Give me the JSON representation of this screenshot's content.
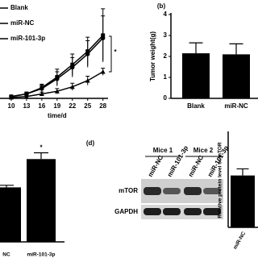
{
  "chart_data": [
    {
      "type": "line",
      "x": [
        10,
        13,
        16,
        19,
        22,
        25,
        28
      ],
      "xlim": [
        7,
        29
      ],
      "xticks": [
        10,
        13,
        16,
        19,
        22,
        25,
        28
      ],
      "xlabel": "time/d",
      "ylim": [
        0,
        1
      ],
      "annotation": "*",
      "series": [
        {
          "name": "Blank",
          "color": "#000000",
          "marker": "square",
          "values": [
            0.02,
            0.05,
            0.12,
            0.24,
            0.38,
            0.53,
            0.71
          ],
          "errors": [
            0.01,
            0.02,
            0.04,
            0.09,
            0.12,
            0.16,
            0.3
          ]
        },
        {
          "name": "miR-NC",
          "color": "#000000",
          "marker": "circle",
          "values": [
            0.02,
            0.05,
            0.11,
            0.22,
            0.35,
            0.5,
            0.68
          ],
          "errors": [
            0.01,
            0.02,
            0.04,
            0.08,
            0.11,
            0.15,
            0.25
          ]
        },
        {
          "name": "miR-101-3p",
          "color": "#000000",
          "marker": "triangle",
          "values": [
            0.01,
            0.02,
            0.05,
            0.08,
            0.13,
            0.2,
            0.3
          ],
          "errors": [
            0.01,
            0.01,
            0.02,
            0.03,
            0.04,
            0.05,
            0.04
          ]
        }
      ]
    },
    {
      "type": "bar",
      "panel": "(b)",
      "ylabel": "Tumor weight(g)",
      "categories": [
        "Blank",
        "miR-NC"
      ],
      "values": [
        2.15,
        2.1
      ],
      "errors": [
        0.5,
        0.5
      ],
      "color": "#000000",
      "ylim": [
        0,
        4
      ],
      "yticks": [
        0,
        1,
        2,
        3,
        4
      ]
    },
    {
      "type": "bar",
      "categories": [
        "NC",
        "miR-101-3p"
      ],
      "values": [
        0.52,
        0.79
      ],
      "errors": [
        0.02,
        0.06
      ],
      "color": "#000000",
      "ylim": [
        0,
        1
      ],
      "annotation": "*"
    },
    {
      "type": "bar",
      "ylabel": "Relative protein level of mTOR",
      "categories": [
        "miR-NC"
      ],
      "values": [
        0.55
      ],
      "errors": [
        0.07
      ],
      "color": "#000000",
      "ylim": [
        0,
        1
      ]
    }
  ],
  "panel_label": "(d)",
  "blot": {
    "groups": [
      "Mice 1",
      "Mice 2"
    ],
    "lanes": [
      "miR-NC",
      "miR-101-3p",
      "miR-NC",
      "miR-101-3p"
    ],
    "rows": [
      "mTOR",
      "GAPDH"
    ]
  }
}
